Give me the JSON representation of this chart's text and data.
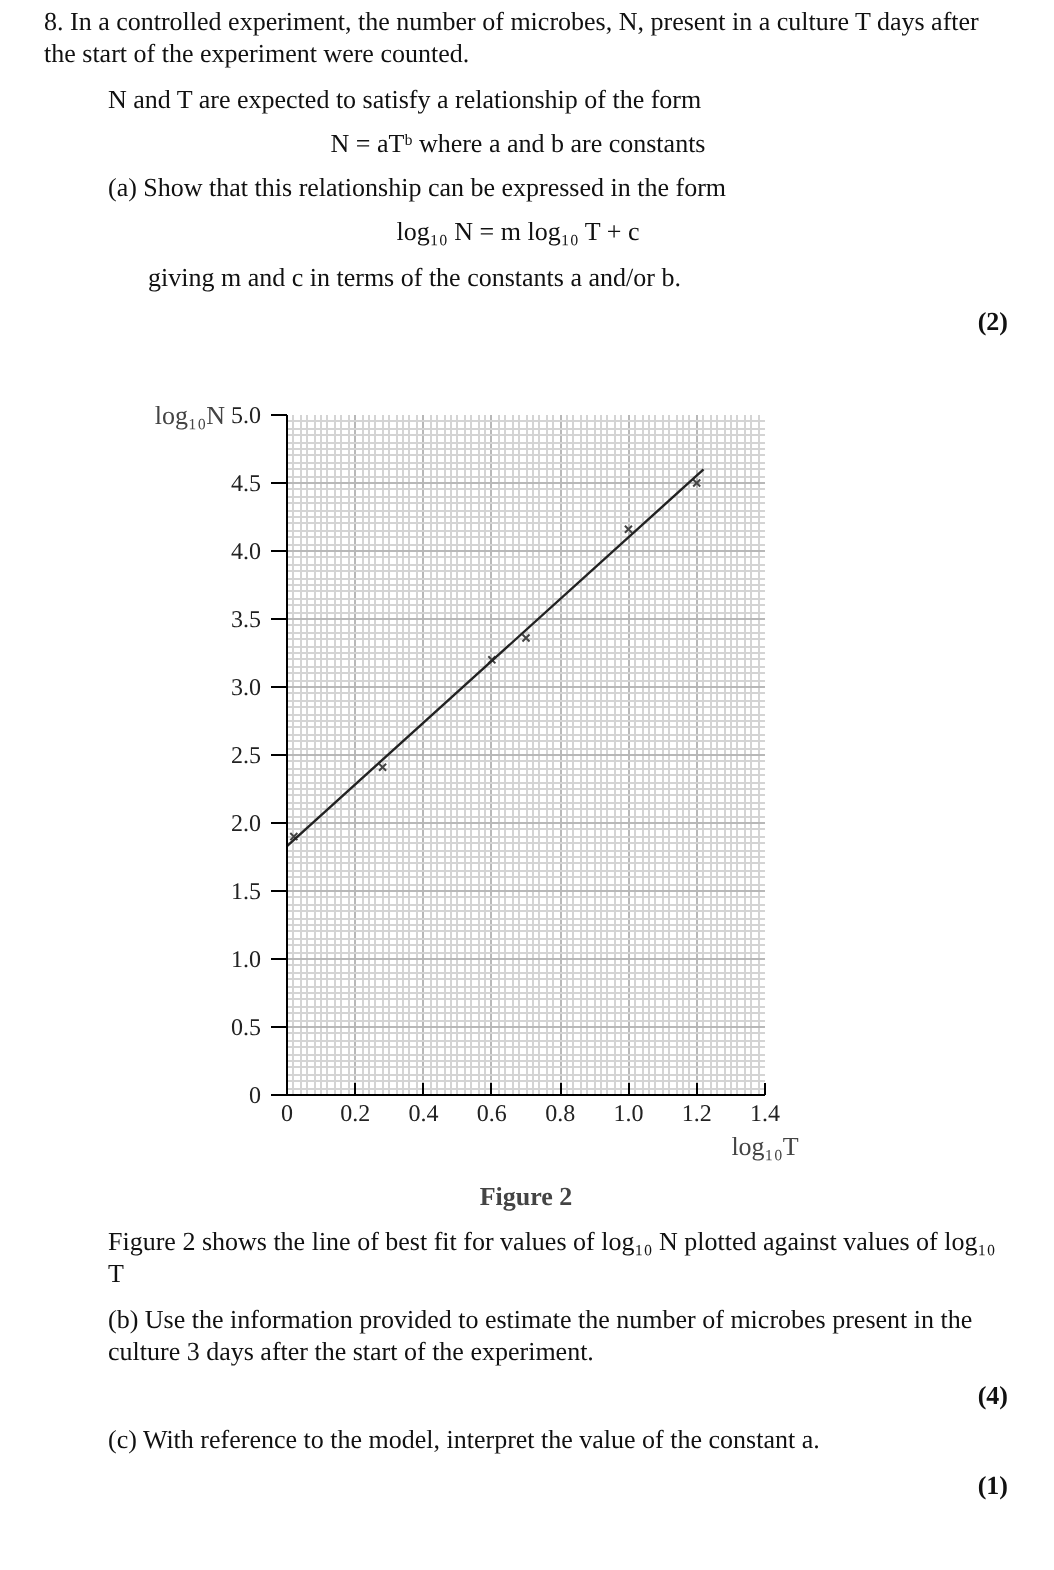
{
  "chart_data": {
    "type": "scatter",
    "title": "Figure 2",
    "xlabel": "log₁₀T",
    "ylabel": "log₁₀N",
    "series": [
      {
        "color": "#444444",
        "marker": "cross",
        "x": [
          0.02,
          0.28,
          0.6,
          0.7,
          1.0,
          1.2
        ],
        "values": [
          1.9,
          2.41,
          3.2,
          3.36,
          4.16,
          4.5
        ]
      },
      {
        "type": "line",
        "color": "#222222",
        "line_style": "solid",
        "x": [
          0,
          1.22
        ],
        "values": [
          1.83,
          4.6
        ]
      }
    ],
    "xlim": [
      0,
      1.4
    ],
    "ylim": [
      0,
      5.0
    ],
    "xticks": [
      0,
      0.2,
      0.4,
      0.6,
      0.8,
      {
        "value": 1,
        "label": "1.0"
      },
      1.2,
      1.4
    ],
    "yticks": [
      0,
      0.5,
      {
        "value": 1,
        "label": "1.0"
      },
      1.5,
      {
        "value": 2,
        "label": "2.0"
      },
      2.5,
      {
        "value": 3,
        "label": "3.0"
      },
      3.5,
      {
        "value": 4,
        "label": "4.0"
      },
      4.5,
      {
        "value": 5,
        "label": "5.0"
      }
    ],
    "grid": true,
    "annotations": [
      "8. In a controlled experiment, the number of microbes, N, present in a culture T days after the start of the experiment were counted.",
      "N and T are expected to satisfy a relationship of the form",
      "N = aTᵇ          where a and b are constants",
      "(a) Show that this relationship can be expressed in the form",
      "log₁₀ N = m log₁₀ T + c",
      "giving m and c in terms of the constants a and/or b.",
      "(2)",
      "Figure 2 shows the line of best fit for values of log₁₀ N plotted against values of log₁₀ T",
      "(b) Use the information provided to estimate the number of microbes present in the culture 3 days after the start of the experiment.",
      "(4)",
      "(c) With reference to the model, interpret the value of the constant a.",
      "(1)"
    ]
  }
}
